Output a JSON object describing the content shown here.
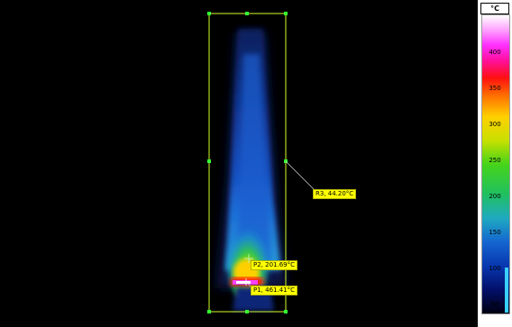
{
  "scale": {
    "unit": "°C",
    "ticks": [
      "400",
      "350",
      "300",
      "250",
      "200",
      "150",
      "100",
      "50"
    ],
    "gradient_colors": [
      "#000010",
      "#0737b0",
      "#1faac0",
      "#46d41a",
      "#ffd000",
      "#ff1010",
      "#ff30ff",
      "#ffffff"
    ]
  },
  "markers": {
    "r3": "R3, 44.20°C",
    "p2": "P2, 201.69°C",
    "p1": "P1, 461.41°C"
  },
  "colors": {
    "roi": "#d4ff2a",
    "label_bg": "#ffff00",
    "indicator": "#39cfff"
  }
}
